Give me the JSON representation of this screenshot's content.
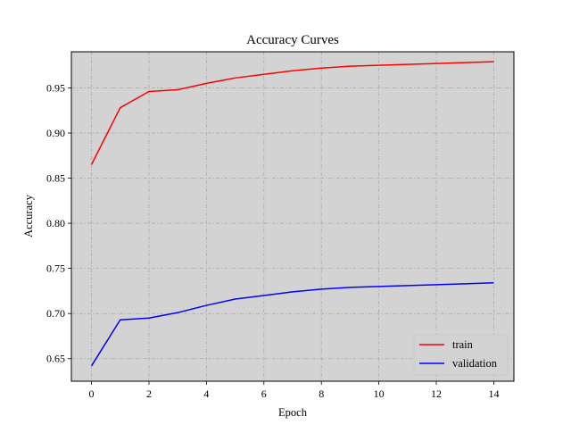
{
  "chart_data": {
    "type": "line",
    "title": "Accuracy Curves",
    "xlabel": "Epoch",
    "ylabel": "Accuracy",
    "xlim": [
      -0.7,
      14.7
    ],
    "ylim": [
      0.625,
      0.99
    ],
    "xticks": [
      0,
      2,
      4,
      6,
      8,
      10,
      12,
      14
    ],
    "yticks": [
      0.65,
      0.7,
      0.75,
      0.8,
      0.85,
      0.9,
      0.95
    ],
    "xtick_labels": [
      "0",
      "2",
      "4",
      "6",
      "8",
      "10",
      "12",
      "14"
    ],
    "ytick_labels": [
      "0.65",
      "0.70",
      "0.75",
      "0.80",
      "0.85",
      "0.90",
      "0.95"
    ],
    "grid": true,
    "legend_position": "bottom-right",
    "background_color": "#d3d3d3",
    "grid_color": "#a9a9a9",
    "x": [
      0,
      1,
      2,
      3,
      4,
      5,
      6,
      7,
      8,
      9,
      10,
      11,
      12,
      13,
      14
    ],
    "series": [
      {
        "name": "train",
        "color": "#ff0000",
        "values": [
          0.865,
          0.928,
          0.946,
          0.948,
          0.955,
          0.961,
          0.965,
          0.969,
          0.972,
          0.974,
          0.975,
          0.976,
          0.977,
          0.978,
          0.979
        ]
      },
      {
        "name": "validation",
        "color": "#0000ff",
        "values": [
          0.642,
          0.693,
          0.695,
          0.701,
          0.709,
          0.716,
          0.72,
          0.724,
          0.727,
          0.729,
          0.73,
          0.731,
          0.732,
          0.733,
          0.734
        ]
      }
    ]
  }
}
